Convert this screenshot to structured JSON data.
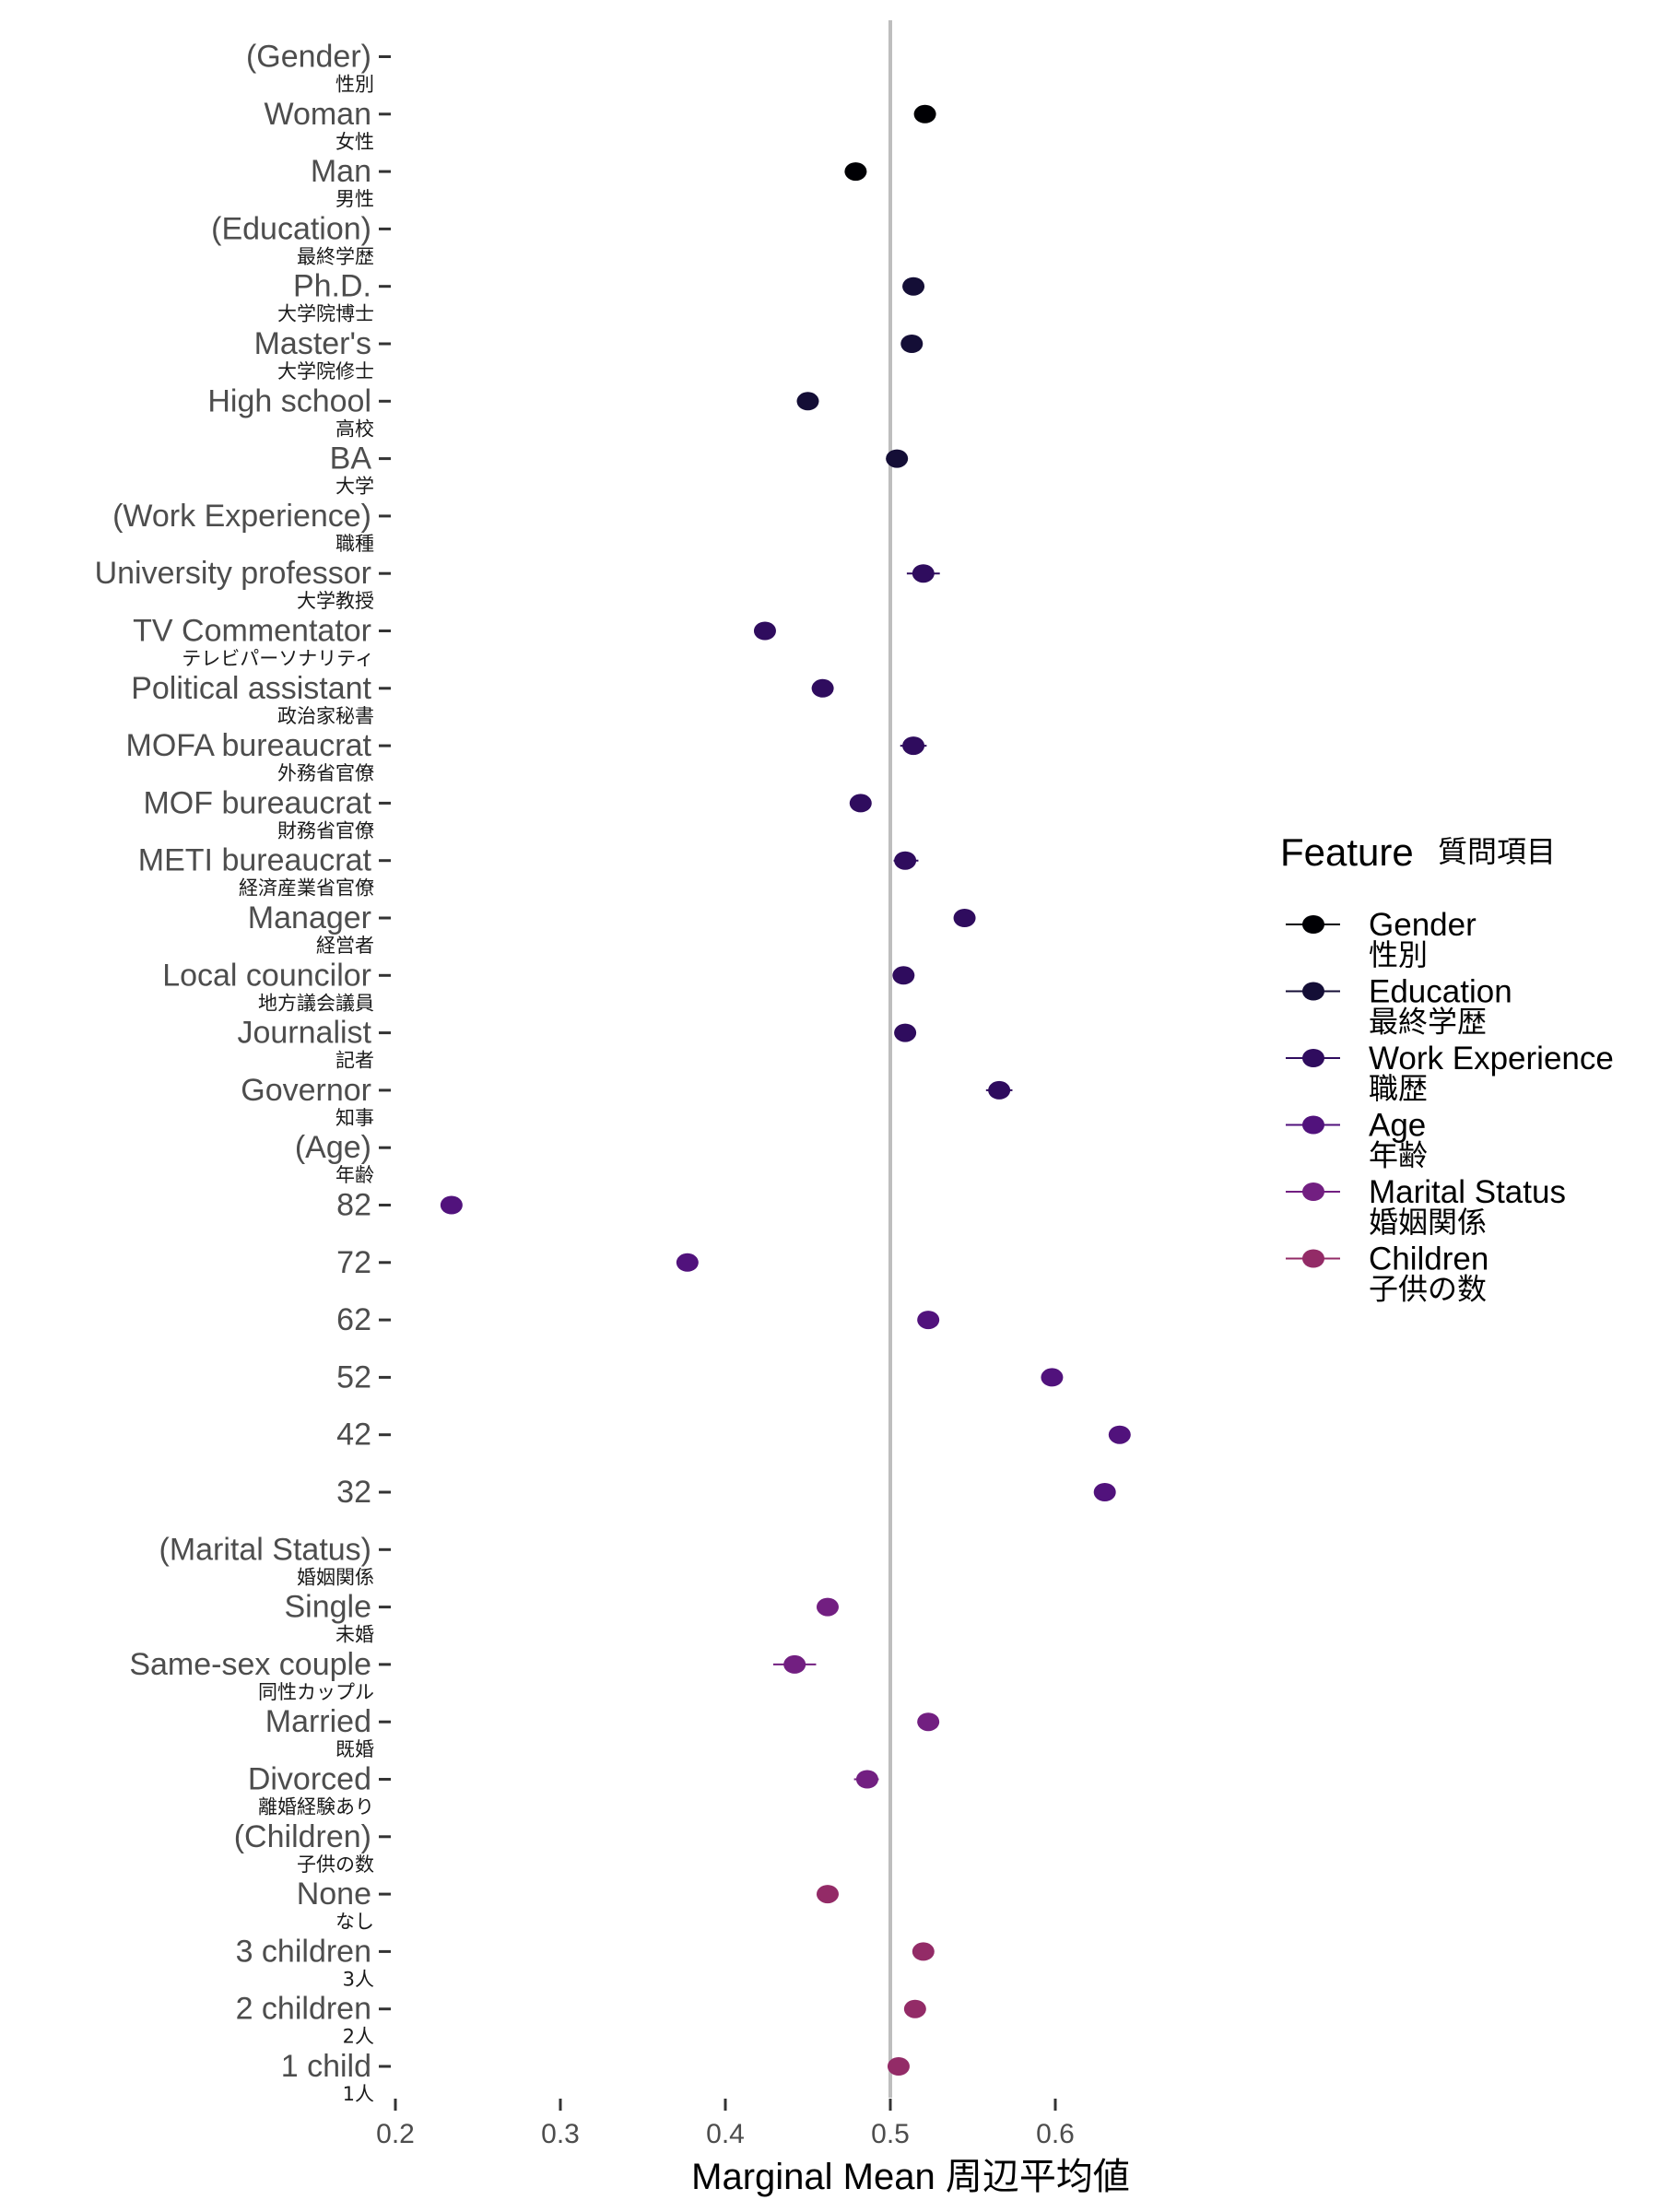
{
  "chart_data": {
    "type": "scatter",
    "subtype": "dot-whisker",
    "title": "",
    "xlabel": "Marginal Mean 周辺平均値",
    "ylabel": "",
    "xlim": [
      0.2,
      0.65
    ],
    "xticks": [
      "0.2",
      "0.3",
      "0.4",
      "0.5",
      "0.6"
    ],
    "xtick_values": [
      0.2,
      0.3,
      0.4,
      0.5,
      0.6
    ],
    "reference_line": 0.5,
    "grid": false,
    "legend": {
      "title": "Feature",
      "title_ja": "質問項目",
      "placement": "right",
      "items": [
        {
          "group": "Gender",
          "label": "Gender",
          "ja": "性別",
          "color": "#000004"
        },
        {
          "group": "Education",
          "label": "Education",
          "ja": "最終学歴",
          "color": "#140e36"
        },
        {
          "group": "Work",
          "label": "Work Experience",
          "ja": "職歴",
          "color": "#2f0c5e"
        },
        {
          "group": "Age",
          "label": "Age",
          "ja": "年齢",
          "color": "#51127c"
        },
        {
          "group": "Marital",
          "label": "Marital Status",
          "ja": "婚姻関係",
          "color": "#721f81"
        },
        {
          "group": "Children",
          "label": "Children",
          "ja": "子供の数",
          "color": "#932b67"
        }
      ]
    },
    "rows": [
      {
        "label": "(Gender)",
        "ja": "性別",
        "group": "Gender",
        "value": null,
        "ci": null
      },
      {
        "label": "Woman",
        "ja": "女性",
        "group": "Gender",
        "value": 0.521,
        "ci": [
          0.517,
          0.525
        ]
      },
      {
        "label": "Man",
        "ja": "男性",
        "group": "Gender",
        "value": 0.479,
        "ci": [
          0.475,
          0.483
        ]
      },
      {
        "label": "(Education)",
        "ja": "最終学歴",
        "group": "Education",
        "value": null,
        "ci": null
      },
      {
        "label": "Ph.D.",
        "ja": "大学院博士",
        "group": "Education",
        "value": 0.514,
        "ci": [
          0.509,
          0.519
        ]
      },
      {
        "label": "Master's",
        "ja": "大学院修士",
        "group": "Education",
        "value": 0.513,
        "ci": [
          0.508,
          0.518
        ]
      },
      {
        "label": "High school",
        "ja": "高校",
        "group": "Education",
        "value": 0.45,
        "ci": [
          0.445,
          0.455
        ]
      },
      {
        "label": "BA",
        "ja": "大学",
        "group": "Education",
        "value": 0.504,
        "ci": [
          0.499,
          0.509
        ]
      },
      {
        "label": "(Work Experience)",
        "ja": "職種",
        "group": "Work",
        "value": null,
        "ci": null
      },
      {
        "label": "University professor",
        "ja": "大学教授",
        "group": "Work",
        "value": 0.52,
        "ci": [
          0.51,
          0.53
        ]
      },
      {
        "label": "TV Commentator",
        "ja": "テレビパーソナリティ",
        "group": "Work",
        "value": 0.424,
        "ci": [
          0.418,
          0.43
        ]
      },
      {
        "label": "Political assistant",
        "ja": "政治家秘書",
        "group": "Work",
        "value": 0.459,
        "ci": [
          0.453,
          0.465
        ]
      },
      {
        "label": "MOFA bureaucrat",
        "ja": "外務省官僚",
        "group": "Work",
        "value": 0.514,
        "ci": [
          0.506,
          0.522
        ]
      },
      {
        "label": "MOF bureaucrat",
        "ja": "財務省官僚",
        "group": "Work",
        "value": 0.482,
        "ci": [
          0.476,
          0.488
        ]
      },
      {
        "label": "METI bureaucrat",
        "ja": "経済産業省官僚",
        "group": "Work",
        "value": 0.509,
        "ci": [
          0.502,
          0.517
        ]
      },
      {
        "label": "Manager",
        "ja": "経営者",
        "group": "Work",
        "value": 0.545,
        "ci": [
          0.539,
          0.551
        ]
      },
      {
        "label": "Local councilor",
        "ja": "地方議会議員",
        "group": "Work",
        "value": 0.508,
        "ci": [
          0.503,
          0.513
        ]
      },
      {
        "label": "Journalist",
        "ja": "記者",
        "group": "Work",
        "value": 0.509,
        "ci": [
          0.503,
          0.515
        ]
      },
      {
        "label": "Governor",
        "ja": "知事",
        "group": "Work",
        "value": 0.566,
        "ci": [
          0.558,
          0.574
        ]
      },
      {
        "label": "(Age)",
        "ja": "年齢",
        "group": "Age",
        "value": null,
        "ci": null
      },
      {
        "label": "82",
        "ja": "",
        "group": "Age",
        "value": 0.234,
        "ci": [
          0.229,
          0.239
        ]
      },
      {
        "label": "72",
        "ja": "",
        "group": "Age",
        "value": 0.377,
        "ci": [
          0.372,
          0.382
        ]
      },
      {
        "label": "62",
        "ja": "",
        "group": "Age",
        "value": 0.523,
        "ci": [
          0.518,
          0.528
        ]
      },
      {
        "label": "52",
        "ja": "",
        "group": "Age",
        "value": 0.598,
        "ci": [
          0.593,
          0.603
        ]
      },
      {
        "label": "42",
        "ja": "",
        "group": "Age",
        "value": 0.639,
        "ci": [
          0.634,
          0.644
        ]
      },
      {
        "label": "32",
        "ja": "",
        "group": "Age",
        "value": 0.63,
        "ci": [
          0.625,
          0.635
        ]
      },
      {
        "label": "(Marital Status)",
        "ja": "婚姻関係",
        "group": "Marital",
        "value": null,
        "ci": null
      },
      {
        "label": "Single",
        "ja": "未婚",
        "group": "Marital",
        "value": 0.462,
        "ci": [
          0.457,
          0.467
        ]
      },
      {
        "label": "Same-sex couple",
        "ja": "同性カップル",
        "group": "Marital",
        "value": 0.442,
        "ci": [
          0.429,
          0.455
        ]
      },
      {
        "label": "Married",
        "ja": "既婚",
        "group": "Marital",
        "value": 0.523,
        "ci": [
          0.518,
          0.528
        ]
      },
      {
        "label": "Divorced",
        "ja": "離婚経験あり",
        "group": "Marital",
        "value": 0.486,
        "ci": [
          0.478,
          0.493
        ]
      },
      {
        "label": "(Children)",
        "ja": "子供の数",
        "group": "Children",
        "value": null,
        "ci": null
      },
      {
        "label": "None",
        "ja": "なし",
        "group": "Children",
        "value": 0.462,
        "ci": [
          0.457,
          0.467
        ]
      },
      {
        "label": "3 children",
        "ja": "3人",
        "group": "Children",
        "value": 0.52,
        "ci": [
          0.515,
          0.525
        ]
      },
      {
        "label": "2 children",
        "ja": "2人",
        "group": "Children",
        "value": 0.515,
        "ci": [
          0.51,
          0.52
        ]
      },
      {
        "label": "1 child",
        "ja": "1人",
        "group": "Children",
        "value": 0.505,
        "ci": [
          0.5,
          0.51
        ]
      }
    ]
  }
}
